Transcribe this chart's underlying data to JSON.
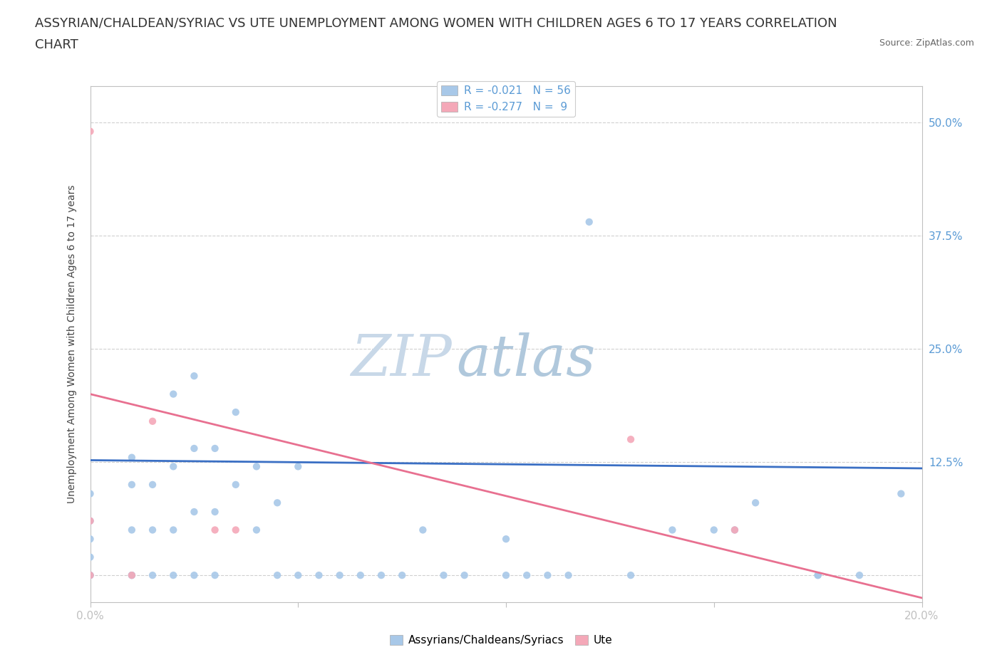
{
  "title_line1": "ASSYRIAN/CHALDEAN/SYRIAC VS UTE UNEMPLOYMENT AMONG WOMEN WITH CHILDREN AGES 6 TO 17 YEARS CORRELATION",
  "title_line2": "CHART",
  "source_text": "Source: ZipAtlas.com",
  "ylabel": "Unemployment Among Women with Children Ages 6 to 17 years",
  "xlim": [
    0.0,
    0.2
  ],
  "ylim": [
    -0.03,
    0.54
  ],
  "xticks": [
    0.0,
    0.05,
    0.1,
    0.15,
    0.2
  ],
  "xtick_labels": [
    "0.0%",
    "",
    "",
    "",
    "20.0%"
  ],
  "ytick_positions": [
    0.0,
    0.125,
    0.25,
    0.375,
    0.5
  ],
  "ytick_labels": [
    "",
    "12.5%",
    "25.0%",
    "37.5%",
    "50.0%"
  ],
  "blue_color": "#a8c8e8",
  "pink_color": "#f4a8b8",
  "blue_label": "Assyrians/Chaldeans/Syriacs",
  "pink_label": "Ute",
  "legend_r_blue": "R = -0.021",
  "legend_n_blue": "N = 56",
  "legend_r_pink": "R = -0.277",
  "legend_n_pink": "N =  9",
  "watermark_zip": "ZIP",
  "watermark_atlas": "atlas",
  "grid_color": "#d0d0d0",
  "blue_line_color": "#3a6fc4",
  "pink_line_color": "#e87090",
  "blue_scatter_x": [
    0.0,
    0.0,
    0.0,
    0.0,
    0.0,
    0.0,
    0.01,
    0.01,
    0.01,
    0.01,
    0.01,
    0.015,
    0.015,
    0.015,
    0.02,
    0.02,
    0.02,
    0.02,
    0.025,
    0.025,
    0.025,
    0.025,
    0.03,
    0.03,
    0.03,
    0.035,
    0.035,
    0.04,
    0.04,
    0.045,
    0.045,
    0.05,
    0.05,
    0.055,
    0.06,
    0.065,
    0.07,
    0.075,
    0.08,
    0.085,
    0.09,
    0.1,
    0.1,
    0.105,
    0.11,
    0.115,
    0.12,
    0.13,
    0.14,
    0.15,
    0.155,
    0.16,
    0.175,
    0.175,
    0.185,
    0.195
  ],
  "blue_scatter_y": [
    0.0,
    0.0,
    0.02,
    0.04,
    0.06,
    0.09,
    0.0,
    0.0,
    0.05,
    0.1,
    0.13,
    0.0,
    0.05,
    0.1,
    0.0,
    0.05,
    0.12,
    0.2,
    0.0,
    0.07,
    0.14,
    0.22,
    0.0,
    0.07,
    0.14,
    0.1,
    0.18,
    0.05,
    0.12,
    0.0,
    0.08,
    0.0,
    0.12,
    0.0,
    0.0,
    0.0,
    0.0,
    0.0,
    0.05,
    0.0,
    0.0,
    0.0,
    0.04,
    0.0,
    0.0,
    0.0,
    0.39,
    0.0,
    0.05,
    0.05,
    0.05,
    0.08,
    0.0,
    0.0,
    0.0,
    0.09
  ],
  "pink_scatter_x": [
    0.0,
    0.0,
    0.0,
    0.01,
    0.015,
    0.03,
    0.035,
    0.13,
    0.155
  ],
  "pink_scatter_y": [
    0.0,
    0.06,
    0.49,
    0.0,
    0.17,
    0.05,
    0.05,
    0.15,
    0.05
  ],
  "blue_line_x": [
    0.0,
    0.2
  ],
  "blue_line_y": [
    0.127,
    0.118
  ],
  "pink_line_x": [
    0.0,
    0.2
  ],
  "pink_line_y": [
    0.2,
    -0.025
  ],
  "title_fontsize": 13,
  "axis_label_fontsize": 10,
  "tick_fontsize": 11,
  "legend_fontsize": 11,
  "watermark_fontsize_zip": 58,
  "watermark_fontsize_atlas": 58,
  "watermark_color_zip": "#c8d8e8",
  "watermark_color_atlas": "#b0c8dc",
  "background_color": "#ffffff",
  "axis_color": "#5b9bd5",
  "text_color": "#333333"
}
